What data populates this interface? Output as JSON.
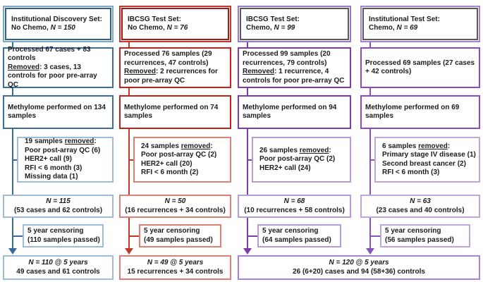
{
  "figure": {
    "type": "consort-flow-diagram",
    "background": "#ffffff",
    "text_color": "#1c1c1c"
  },
  "cols": [
    {
      "name": "institutional-discovery-no-chemo",
      "colors": {
        "strong": "#3d6f9e",
        "light": "#9cbcd8",
        "line": "#3a6a9a",
        "hdr_outer": "#7ba7cb",
        "hdr_inner": "#2f608f"
      },
      "header": [
        [
          [
            "",
            "Institutional Discovery Set:"
          ]
        ],
        [
          [
            "",
            "No Chemo, "
          ],
          [
            "i",
            "N = 150"
          ]
        ]
      ],
      "processed": [
        [
          [
            "",
            "Processed 67 cases + 83 controls"
          ]
        ],
        [
          [
            "u",
            "Removed"
          ],
          [
            "",
            ": 3 cases, 13 controls for poor pre-array QC"
          ]
        ]
      ],
      "methylome": [
        [
          [
            "",
            "Methylome performed on 134 samples"
          ]
        ]
      ],
      "removed": [
        [
          [
            "",
            "19 samples "
          ],
          [
            "u",
            "removed"
          ],
          [
            "",
            ":"
          ]
        ],
        [
          [
            "",
            "Poor post-array QC (6)"
          ]
        ],
        [
          [
            "",
            "HER2+ call (9)"
          ]
        ],
        [
          [
            "",
            "RFI < 6 month (3)"
          ]
        ],
        [
          [
            "",
            "Missing data (1)"
          ]
        ]
      ],
      "n_box": [
        [
          [
            "i",
            "N = 115"
          ]
        ],
        [
          [
            "",
            "(53 cases and 62 controls)"
          ]
        ]
      ],
      "censoring": [
        [
          [
            "",
            "5 year censoring"
          ]
        ],
        [
          [
            "",
            "(110 samples passed)"
          ]
        ]
      ],
      "final": [
        [
          [
            "i",
            "N = 110 @ 5 years"
          ]
        ],
        [
          [
            "",
            "49 cases and 61 controls"
          ]
        ]
      ]
    },
    {
      "name": "ibcsg-test-no-chemo",
      "colors": {
        "strong": "#c2221a",
        "light": "#dd8074",
        "line": "#c0392b",
        "hdr_outer": "#c0392e",
        "hdr_inner": "#b21511"
      },
      "header": [
        [
          [
            "",
            "IBCSG Test Set:"
          ]
        ],
        [
          [
            "",
            "No Chemo, "
          ],
          [
            "i",
            "N = 76"
          ]
        ]
      ],
      "processed": [
        [
          [
            "",
            "Processed 76 samples (29 recurrences, 47 controls)"
          ]
        ],
        [
          [
            "u",
            "Removed"
          ],
          [
            "",
            ": 2 recurrences for poor pre-array QC"
          ]
        ]
      ],
      "methylome": [
        [
          [
            "",
            "Methylome performed on 74 samples"
          ]
        ]
      ],
      "removed": [
        [
          [
            "",
            "24 samples "
          ],
          [
            "u",
            "removed"
          ],
          [
            "",
            ":"
          ]
        ],
        [
          [
            "",
            "Poor post-array QC (2)"
          ]
        ],
        [
          [
            "",
            "HER2+ call (20)"
          ]
        ],
        [
          [
            "",
            "RFI < 6 month (2)"
          ]
        ]
      ],
      "n_box": [
        [
          [
            "i",
            "N = 50"
          ]
        ],
        [
          [
            "",
            "(16 recurrences + 34 controls)"
          ]
        ]
      ],
      "censoring": [
        [
          [
            "",
            "5 year censoring"
          ]
        ],
        [
          [
            "",
            "(49 samples passed)"
          ]
        ]
      ],
      "final": [
        [
          [
            "i",
            "N = 49 @ 5 years"
          ]
        ],
        [
          [
            "",
            "15 recurrences + 34 controls"
          ]
        ]
      ]
    },
    {
      "name": "ibcsg-test-chemo",
      "colors": {
        "strong": "#7d3caa",
        "light": "#b79ad8",
        "line": "#7d3caa",
        "hdr_outer": "#9b76cf",
        "hdr_inner": "#595959"
      },
      "header": [
        [
          [
            "",
            "IBCSG Test Set:"
          ]
        ],
        [
          [
            "",
            "Chemo, "
          ],
          [
            "i",
            "N = 99"
          ]
        ]
      ],
      "processed": [
        [
          [
            "",
            "Processed 99 samples (20 recurrences, 79 controls)"
          ]
        ],
        [
          [
            "u",
            "Removed"
          ],
          [
            "",
            ": 1 recurrence, 4 controls for poor pre-array QC"
          ]
        ]
      ],
      "methylome": [
        [
          [
            "",
            "Methylome performed on 94 samples"
          ]
        ]
      ],
      "removed": [
        [
          [
            "",
            "26 samples "
          ],
          [
            "u",
            "removed"
          ],
          [
            "",
            ":"
          ]
        ],
        [
          [
            "",
            "Poor post-array QC (2)"
          ]
        ],
        [
          [
            "",
            "HER2+ call (24)"
          ]
        ]
      ],
      "n_box": [
        [
          [
            "i",
            "N = 68"
          ]
        ],
        [
          [
            "",
            "(10 recurrences + 58 controls)"
          ]
        ]
      ],
      "censoring": [
        [
          [
            "",
            "5 year censoring"
          ]
        ],
        [
          [
            "",
            "(64 samples passed)"
          ]
        ]
      ],
      "final": null
    },
    {
      "name": "institutional-test-chemo",
      "colors": {
        "strong": "#8a4bc0",
        "light": "#c0a6dc",
        "line": "#8a52c0",
        "hdr_outer": "#a87fd8",
        "hdr_inner": "#595959"
      },
      "header": [
        [
          [
            "",
            "Institutional Test Set:"
          ]
        ],
        [
          [
            "",
            "Chemo, "
          ],
          [
            "i",
            "N = 69"
          ]
        ]
      ],
      "processed": [
        [
          [
            "",
            "Processed 69 samples (27 cases + 42 controls)"
          ]
        ]
      ],
      "methylome": [
        [
          [
            "",
            "Methylome performed on 69 samples"
          ]
        ]
      ],
      "removed": [
        [
          [
            "",
            "6 samples "
          ],
          [
            "u",
            "removed"
          ],
          [
            "",
            ":"
          ]
        ],
        [
          [
            "",
            "Primary stage IV disease (1)"
          ]
        ],
        [
          [
            "",
            "Second breast cancer (2)"
          ]
        ],
        [
          [
            "",
            "RFI < 6 month (3)"
          ]
        ]
      ],
      "n_box": [
        [
          [
            "i",
            "N = 63"
          ]
        ],
        [
          [
            "",
            "(23 cases and 40 controls)"
          ]
        ]
      ],
      "censoring": [
        [
          [
            "",
            "5 year censoring"
          ]
        ],
        [
          [
            "",
            "(56 samples passed)"
          ]
        ]
      ],
      "final": null
    }
  ],
  "final_combined": {
    "border_color": "#a981d6",
    "lines": [
      [
        [
          "i",
          "N = 120 @ 5 years"
        ]
      ],
      [
        [
          "",
          "26 (6+20) cases and 94 (58+36) controls"
        ]
      ]
    ]
  }
}
